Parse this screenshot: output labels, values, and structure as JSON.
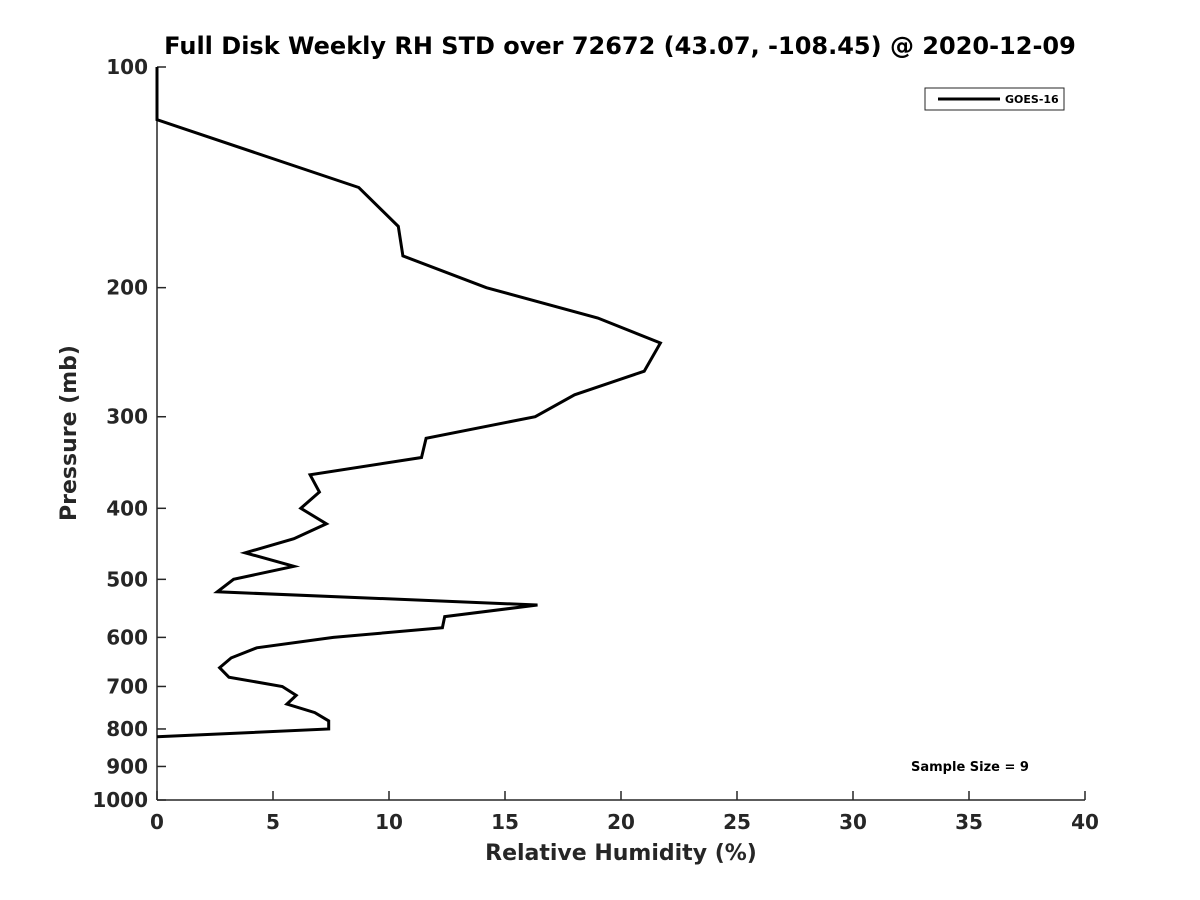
{
  "chart_data": {
    "type": "line",
    "title": "Full Disk Weekly RH STD over 72672 (43.07, -108.45) @ 2020-12-09",
    "xlabel": "Relative Humidity (%)",
    "ylabel": "Pressure (mb)",
    "xlim": [
      0,
      40
    ],
    "ylim": [
      100,
      1000
    ],
    "y_scale": "log",
    "y_reversed": true,
    "grid": false,
    "xticks": [
      0,
      5,
      10,
      15,
      20,
      25,
      30,
      35,
      40
    ],
    "yticks": [
      100,
      200,
      300,
      400,
      500,
      600,
      700,
      800,
      900,
      1000
    ],
    "legend_position": "top-right",
    "series": [
      {
        "name": "GOES-16",
        "color": "#000000",
        "points": [
          {
            "rh": 0.0,
            "p": 100
          },
          {
            "rh": 0.0,
            "p": 118
          },
          {
            "rh": 8.7,
            "p": 146
          },
          {
            "rh": 10.4,
            "p": 165
          },
          {
            "rh": 10.6,
            "p": 181
          },
          {
            "rh": 14.2,
            "p": 200
          },
          {
            "rh": 19.0,
            "p": 220
          },
          {
            "rh": 21.7,
            "p": 238
          },
          {
            "rh": 21.0,
            "p": 260
          },
          {
            "rh": 18.0,
            "p": 280
          },
          {
            "rh": 16.3,
            "p": 300
          },
          {
            "rh": 11.6,
            "p": 321
          },
          {
            "rh": 11.4,
            "p": 341
          },
          {
            "rh": 6.6,
            "p": 360
          },
          {
            "rh": 7.0,
            "p": 380
          },
          {
            "rh": 6.2,
            "p": 400
          },
          {
            "rh": 7.3,
            "p": 420
          },
          {
            "rh": 5.9,
            "p": 440
          },
          {
            "rh": 3.8,
            "p": 460
          },
          {
            "rh": 5.9,
            "p": 480
          },
          {
            "rh": 3.3,
            "p": 500
          },
          {
            "rh": 2.6,
            "p": 520
          },
          {
            "rh": 16.4,
            "p": 542
          },
          {
            "rh": 12.4,
            "p": 562
          },
          {
            "rh": 12.3,
            "p": 582
          },
          {
            "rh": 7.6,
            "p": 600
          },
          {
            "rh": 4.3,
            "p": 620
          },
          {
            "rh": 3.2,
            "p": 640
          },
          {
            "rh": 2.7,
            "p": 660
          },
          {
            "rh": 3.1,
            "p": 680
          },
          {
            "rh": 5.4,
            "p": 700
          },
          {
            "rh": 6.0,
            "p": 720
          },
          {
            "rh": 5.6,
            "p": 740
          },
          {
            "rh": 6.8,
            "p": 760
          },
          {
            "rh": 7.4,
            "p": 780
          },
          {
            "rh": 7.4,
            "p": 800
          },
          {
            "rh": 0.0,
            "p": 820
          }
        ]
      }
    ],
    "annotations": [
      "Sample Size = 9"
    ]
  }
}
